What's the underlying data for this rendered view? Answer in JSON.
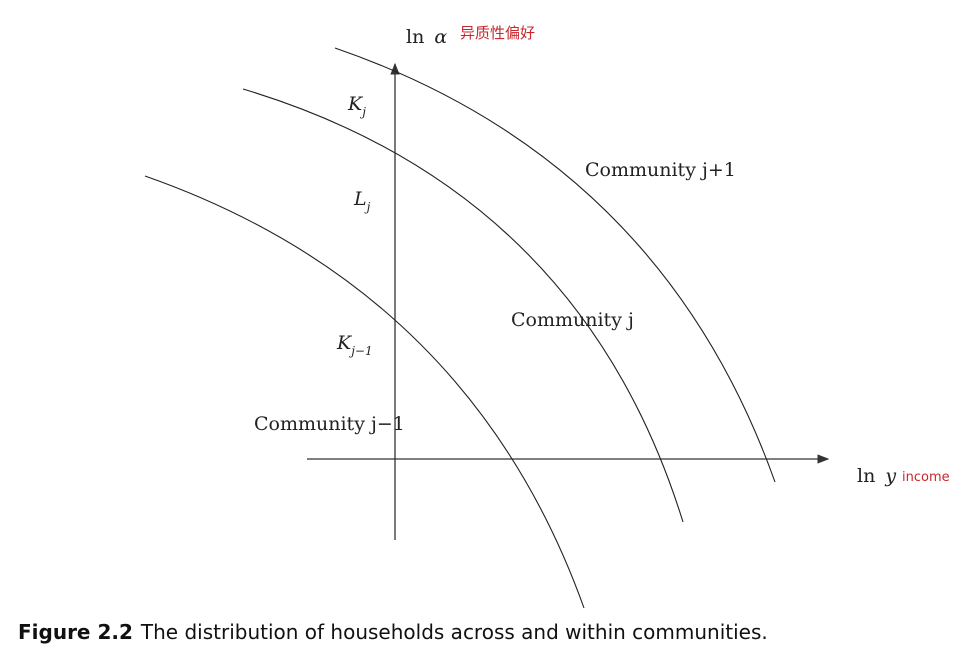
{
  "axes": {
    "y_label_prefix": "ln",
    "y_label_var": "α",
    "y_note": "异质性偏好",
    "x_label_prefix": "ln",
    "x_label_var": "y",
    "x_note": "income"
  },
  "points": {
    "kj_base": "K",
    "kj_sub": "j",
    "lj_base": "L",
    "lj_sub": "j",
    "kj1_base": "K",
    "kj1_sub": "j−1"
  },
  "communities": {
    "upper": "Community j+1",
    "middle": "Community j",
    "lower": "Community j−1"
  },
  "caption": {
    "number": "Figure 2.2",
    "text": "The distribution of households across and within communities."
  }
}
